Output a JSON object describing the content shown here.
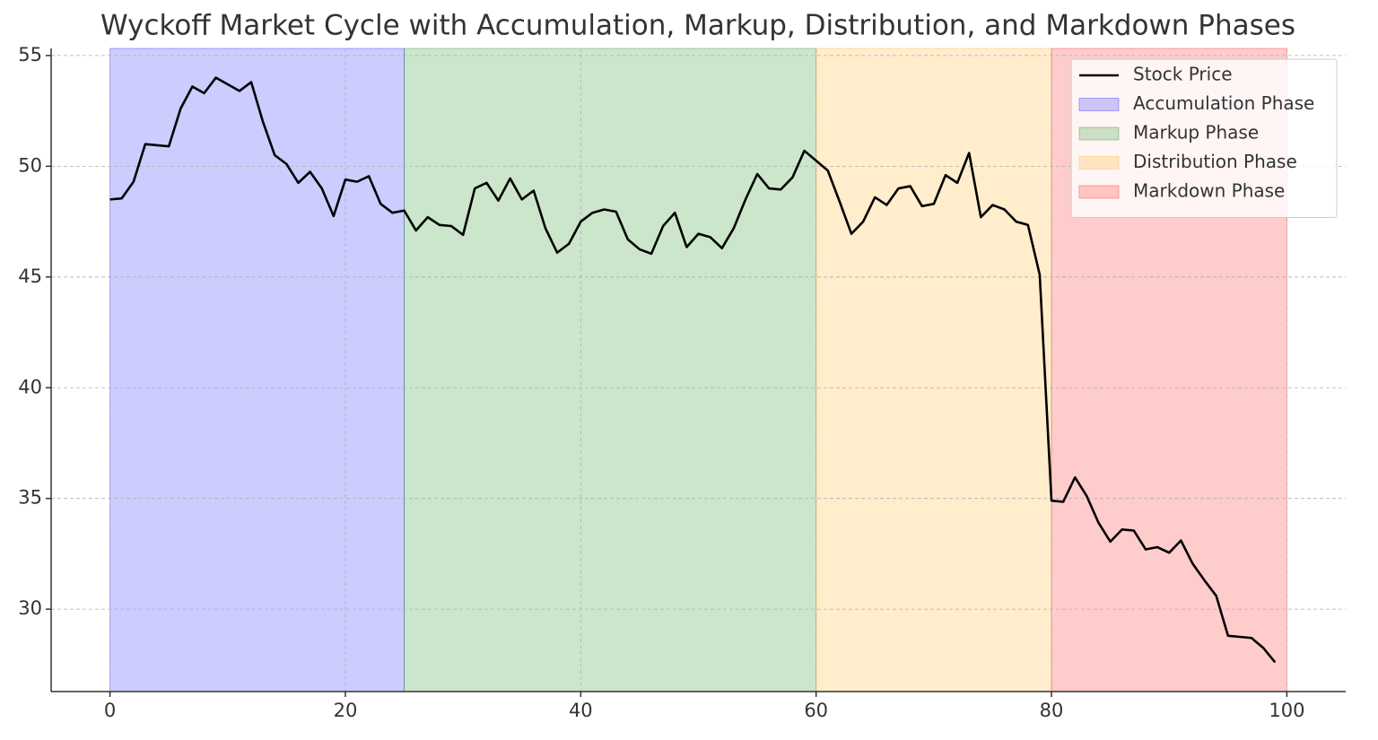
{
  "chart_data": {
    "type": "line",
    "title": "Wyckoff Market Cycle with Accumulation, Markup, Distribution, and Markdown Phases",
    "x": [
      0,
      1,
      2,
      3,
      4,
      5,
      6,
      7,
      8,
      9,
      10,
      11,
      12,
      13,
      14,
      15,
      16,
      17,
      18,
      19,
      20,
      21,
      22,
      23,
      24,
      25,
      26,
      27,
      28,
      29,
      30,
      31,
      32,
      33,
      34,
      35,
      36,
      37,
      38,
      39,
      40,
      41,
      42,
      43,
      44,
      45,
      46,
      47,
      48,
      49,
      50,
      51,
      52,
      53,
      54,
      55,
      56,
      57,
      58,
      59,
      60,
      61,
      62,
      63,
      64,
      65,
      66,
      67,
      68,
      69,
      70,
      71,
      72,
      73,
      74,
      75,
      76,
      77,
      78,
      79,
      80,
      81,
      82,
      83,
      84,
      85,
      86,
      87,
      88,
      89,
      90,
      91,
      92,
      93,
      94,
      95,
      96,
      97,
      98,
      99
    ],
    "series": [
      {
        "name": "Stock Price",
        "color": "#000000",
        "values": [
          48.5,
          48.55,
          49.3,
          51.0,
          50.95,
          50.9,
          52.6,
          53.6,
          53.3,
          54.0,
          53.7,
          53.4,
          53.8,
          52.0,
          50.5,
          50.1,
          49.25,
          49.75,
          49.0,
          47.75,
          49.4,
          49.3,
          49.55,
          48.3,
          47.9,
          48.0,
          47.1,
          47.7,
          47.35,
          47.3,
          46.9,
          49.0,
          49.25,
          48.45,
          49.45,
          48.5,
          48.9,
          47.2,
          46.1,
          46.5,
          47.5,
          47.9,
          48.05,
          47.95,
          46.7,
          46.25,
          46.05,
          47.3,
          47.9,
          46.35,
          46.95,
          46.8,
          46.3,
          47.2,
          48.5,
          49.65,
          49.0,
          48.95,
          49.5,
          50.7,
          50.25,
          49.8,
          48.4,
          46.95,
          47.5,
          48.6,
          48.25,
          49.0,
          49.1,
          48.2,
          48.3,
          49.6,
          49.25,
          50.6,
          47.7,
          48.25,
          48.05,
          47.5,
          47.35,
          45.1,
          34.9,
          34.85,
          35.95,
          35.1,
          33.9,
          33.05,
          33.6,
          33.55,
          32.7,
          32.8,
          32.55,
          33.1,
          32.05,
          31.3,
          30.6,
          28.8,
          28.75,
          28.7,
          28.25,
          27.6
        ]
      }
    ],
    "spans": [
      {
        "name": "Accumulation Phase",
        "start": 0,
        "end": 25,
        "color": "#0000ff"
      },
      {
        "name": "Markup Phase",
        "start": 25,
        "end": 60,
        "color": "#008000"
      },
      {
        "name": "Distribution Phase",
        "start": 60,
        "end": 80,
        "color": "#ffa500"
      },
      {
        "name": "Markdown Phase",
        "start": 80,
        "end": 100,
        "color": "#ff0000"
      }
    ],
    "span_alpha": 0.2,
    "xlim": [
      -5,
      105
    ],
    "ylim": [
      26.28,
      55.32
    ],
    "xticks": [
      0,
      20,
      40,
      60,
      80,
      100
    ],
    "yticks": [
      30,
      35,
      40,
      45,
      50,
      55
    ],
    "grid": true,
    "legend": "upper right"
  }
}
